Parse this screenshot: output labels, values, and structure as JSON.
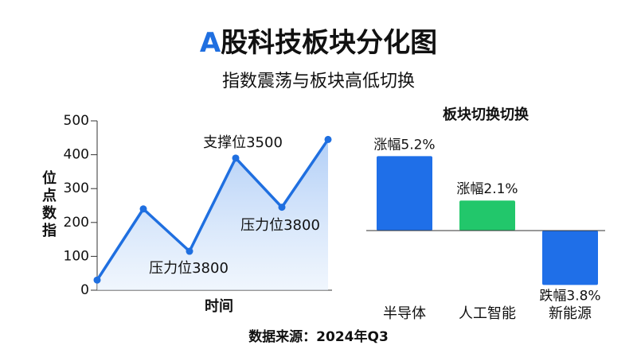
{
  "header": {
    "title_parts": [
      "A",
      "股科技板块分化图"
    ],
    "subtitle": "指数震荡与板块高低切换"
  },
  "chart_data": [
    {
      "type": "line",
      "ylabel": "位点数指",
      "xlabel": "时间",
      "categories": [
        null,
        null,
        null,
        null,
        null,
        null
      ],
      "values": [
        30,
        240,
        115,
        390,
        245,
        445
      ],
      "color": "#1f6fe0",
      "ylim": [
        0,
        500
      ],
      "yticks": [
        0,
        100,
        200,
        300,
        400,
        500
      ],
      "annotations": [
        "压力位3800",
        "支撑位3500",
        "压力位3800"
      ]
    },
    {
      "type": "bar",
      "title": "板块切换切换",
      "categories": [
        "半导体",
        "人工智能",
        "新能源"
      ],
      "values": [
        5.2,
        2.1,
        -3.8
      ],
      "value_labels": [
        "涨幅5.2%",
        "涨幅2.1%",
        "跌幅3.8%"
      ],
      "colors": [
        "#1f6fe8",
        "#22c76b",
        "#1f6fe8"
      ]
    }
  ],
  "footer": {
    "source": "数据来源：2024年Q3"
  }
}
